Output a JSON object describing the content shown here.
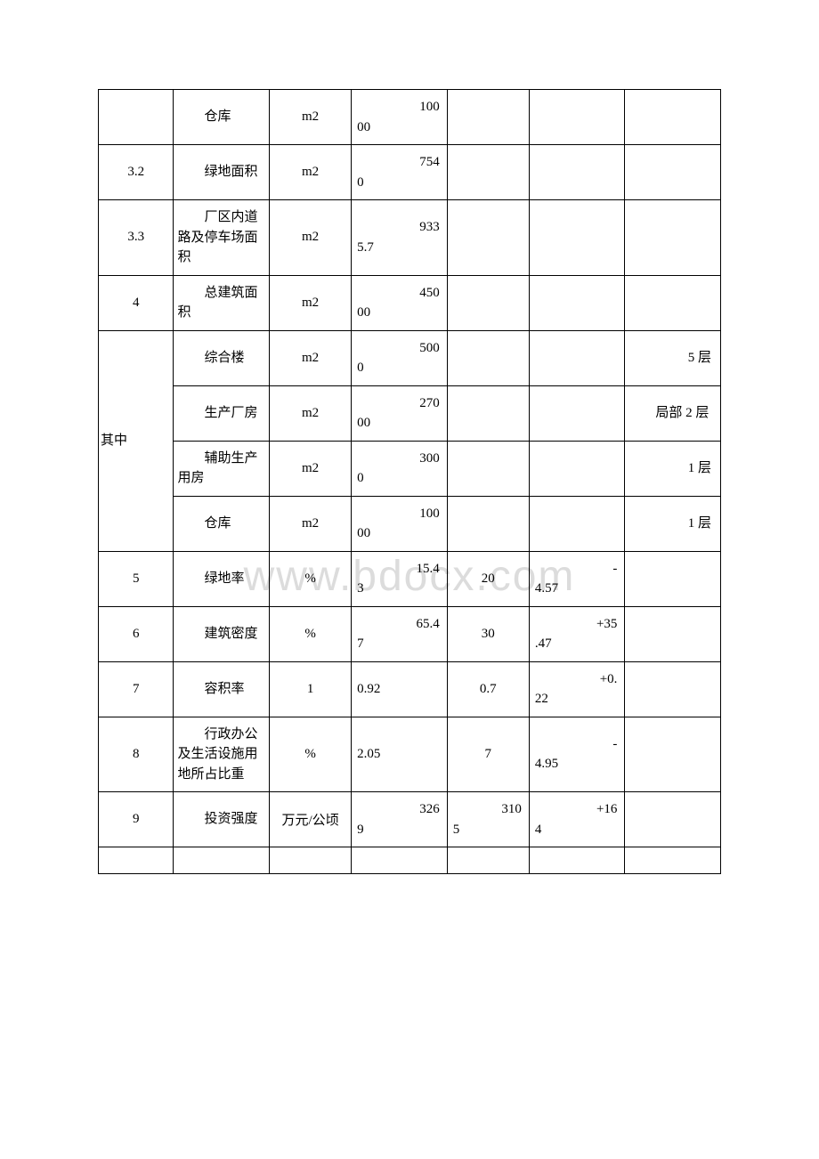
{
  "watermark": "www.bdocx.com",
  "rows": [
    {
      "idx": "",
      "name": "仓库",
      "unit": "m2",
      "val_t": "100",
      "val_b": "00",
      "std": "",
      "diff_t": "",
      "diff_b": "",
      "note": ""
    },
    {
      "idx": "3.2",
      "name": "绿地面积",
      "unit": "m2",
      "val_t": "754",
      "val_b": "0",
      "std": "",
      "diff_t": "",
      "diff_b": "",
      "note": ""
    },
    {
      "idx": "3.3",
      "name": "厂区内道路及停车场面积",
      "unit": "m2",
      "val_t": "933",
      "val_b": "5.7",
      "std": "",
      "diff_t": "",
      "diff_b": "",
      "note": ""
    },
    {
      "idx": "4",
      "name": "总建筑面积",
      "unit": "m2",
      "val_t": "450",
      "val_b": "00",
      "std": "",
      "diff_t": "",
      "diff_b": "",
      "note": ""
    },
    {
      "group": "其中",
      "name": "综合楼",
      "unit": "m2",
      "val_t": "500",
      "val_b": "0",
      "std": "",
      "diff_t": "",
      "diff_b": "",
      "note": "5 层"
    },
    {
      "name": "生产厂房",
      "unit": "m2",
      "val_t": "270",
      "val_b": "00",
      "std": "",
      "diff_t": "",
      "diff_b": "",
      "note_wrap": "局部 2 层"
    },
    {
      "name": "辅助生产用房",
      "unit": "m2",
      "val_t": "300",
      "val_b": "0",
      "std": "",
      "diff_t": "",
      "diff_b": "",
      "note": "1 层"
    },
    {
      "name": "仓库",
      "unit": "m2",
      "val_t": "100",
      "val_b": "00",
      "std": "",
      "diff_t": "",
      "diff_b": "",
      "note": "1 层"
    },
    {
      "idx": "5",
      "name": "绿地率",
      "unit": "%",
      "val_t": "15.4",
      "val_b": "3",
      "std": "20",
      "diff_t": "-",
      "diff_b": "4.57",
      "note": ""
    },
    {
      "idx": "6",
      "name": "建筑密度",
      "unit": "%",
      "val_t": "65.4",
      "val_b": "7",
      "std": "30",
      "diff_t": "+35",
      "diff_b": ".47",
      "note": ""
    },
    {
      "idx": "7",
      "name": "容积率",
      "unit": "1",
      "val_t": "",
      "val_b": "0.92",
      "std": "0.7",
      "diff_t": "+0.",
      "diff_b": "22",
      "note": ""
    },
    {
      "idx": "8",
      "name": "行政办公及生活设施用地所占比重",
      "unit": "%",
      "val_t": "",
      "val_b": "2.05",
      "std": "7",
      "diff_t": "-",
      "diff_b": "4.95",
      "note": ""
    },
    {
      "idx": "9",
      "name": "投资强度",
      "unit": "万元/公顷",
      "val_t": "326",
      "val_b": "9",
      "std_t": "310",
      "std_b": "5",
      "diff_t": "+16",
      "diff_b": "4",
      "note": ""
    }
  ]
}
